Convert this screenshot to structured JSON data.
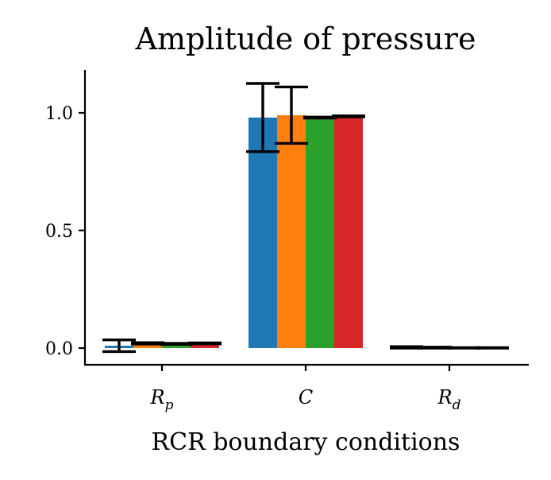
{
  "chart_data": {
    "type": "bar",
    "title": "Amplitude of pressure",
    "xlabel": "RCR boundary conditions",
    "ylabel": "",
    "categories": [
      {
        "base": "R",
        "sub": "p"
      },
      {
        "base": "C",
        "sub": ""
      },
      {
        "base": "R",
        "sub": "d"
      }
    ],
    "series": [
      {
        "color": "#1f77b4",
        "values": [
          0.01,
          0.98,
          0.003
        ],
        "err": [
          0.025,
          0.145,
          0.003
        ]
      },
      {
        "color": "#ff7f0e",
        "values": [
          0.02,
          0.99,
          0.002
        ],
        "err": [
          0.003,
          0.12,
          0.002
        ]
      },
      {
        "color": "#2ca02c",
        "values": [
          0.018,
          0.98,
          0.001
        ],
        "err": [
          0.002,
          0.002,
          0.001
        ]
      },
      {
        "color": "#d62728",
        "values": [
          0.02,
          0.985,
          0.001
        ],
        "err": [
          0.002,
          0.002,
          0.001
        ]
      }
    ],
    "yticks": [
      0.0,
      0.5,
      1.0
    ],
    "ytick_labels": [
      "0.0",
      "0.5",
      "1.0"
    ],
    "ylim": [
      -0.07,
      1.18
    ],
    "grid": false,
    "legend": "none"
  }
}
